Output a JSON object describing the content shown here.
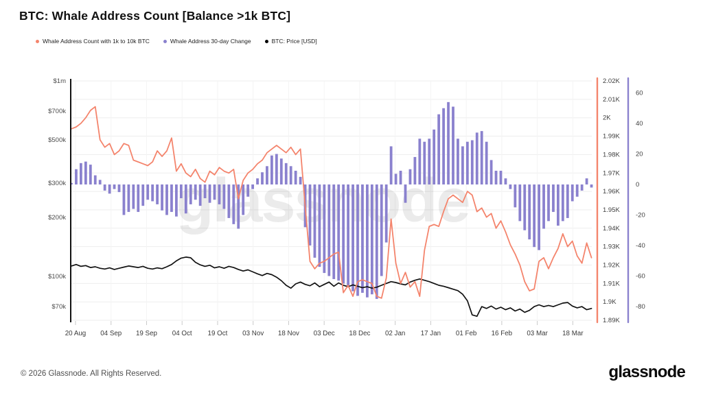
{
  "title": "BTC: Whale Address Count [Balance >1k BTC]",
  "legend": [
    {
      "label": "Whale Address Count with 1k to 10k BTC",
      "color": "#f4846c"
    },
    {
      "label": "Whale Address 30-day Change",
      "color": "#8a81ce"
    },
    {
      "label": "BTC: Price [USD]",
      "color": "#000000"
    }
  ],
  "watermark": "glassnode",
  "footer": {
    "copyright": "© 2026 Glassnode. All Rights Reserved.",
    "brand": "glassnode"
  },
  "chart_data": {
    "type": "mixed",
    "x_tick_labels": [
      "20 Aug",
      "04 Sep",
      "19 Sep",
      "04 Oct",
      "19 Oct",
      "03 Nov",
      "18 Nov",
      "03 Dec",
      "18 Dec",
      "02 Jan",
      "17 Jan",
      "01 Feb",
      "16 Feb",
      "03 Mar",
      "18 Mar"
    ],
    "x_start_label": "20 Aug",
    "point_interval_days": 2,
    "grid": "on",
    "legend_position": "top-left",
    "left_axis": {
      "name": "BTC: Price [USD]",
      "scale": "log",
      "tick_labels": [
        "$1m",
        "$700k",
        "$500k",
        "$300k",
        "$200k",
        "$100k",
        "$70k"
      ],
      "tick_values": [
        1000000,
        700000,
        500000,
        300000,
        200000,
        100000,
        70000
      ]
    },
    "right_axis_count": {
      "name": "Whale Address Count with 1k to 10k BTC",
      "min": 1890,
      "max": 2020,
      "tick_step": 10,
      "tick_labels": [
        "2.02K",
        "2.01K",
        "2K",
        "1.99K",
        "1.98K",
        "1.97K",
        "1.96K",
        "1.95K",
        "1.94K",
        "1.93K",
        "1.92K",
        "1.91K",
        "1.9K",
        "1.89K"
      ]
    },
    "right_axis_change": {
      "name": "Whale Address 30-day Change",
      "tick_values": [
        60,
        40,
        20,
        0,
        -20,
        -40,
        -60,
        -80
      ],
      "ylim": [
        -88,
        68
      ]
    },
    "series": [
      {
        "name": "Whale Address Count with 1k to 10k BTC",
        "type": "line",
        "axis": "right_count",
        "color": "#f4846c",
        "values": [
          1994,
          1995,
          1997,
          2000,
          2004,
          2006,
          1988,
          1984,
          1986,
          1980,
          1982,
          1986,
          1985,
          1977,
          1976,
          1975,
          1974,
          1976,
          1982,
          1979,
          1982,
          1989,
          1971,
          1975,
          1970,
          1968,
          1972,
          1967,
          1965,
          1971,
          1969,
          1973,
          1971,
          1970,
          1972,
          1956,
          1966,
          1970,
          1972,
          1975,
          1977,
          1981,
          1983,
          1985,
          1983,
          1981,
          1984,
          1980,
          1983,
          1952,
          1922,
          1918,
          1921,
          1922,
          1924,
          1926,
          1927,
          1905,
          1909,
          1903,
          1911,
          1912,
          1911,
          1910,
          1903,
          1902,
          1913,
          1945,
          1921,
          1910,
          1916,
          1908,
          1911,
          1903,
          1928,
          1941,
          1942,
          1941,
          1949,
          1956,
          1958,
          1956,
          1954,
          1960,
          1958,
          1949,
          1951,
          1946,
          1948,
          1940,
          1944,
          1938,
          1931,
          1926,
          1920,
          1911,
          1906,
          1907,
          1922,
          1924,
          1918,
          1924,
          1929,
          1937,
          1930,
          1933,
          1925,
          1921,
          1932,
          1924
        ]
      },
      {
        "name": "Whale Address 30-day Change",
        "type": "bar",
        "axis": "right_change",
        "color": "#8a81ce",
        "values": [
          1,
          10,
          14,
          15,
          13,
          6,
          3,
          -4,
          -6,
          -3,
          -5,
          -20,
          -18,
          -16,
          -18,
          -14,
          -10,
          -11,
          -13,
          -17,
          -20,
          -18,
          -21,
          -9,
          -19,
          -13,
          -10,
          -14,
          -9,
          -12,
          -10,
          -13,
          -16,
          -22,
          -26,
          -29,
          -20,
          -8,
          -3,
          4,
          8,
          12,
          19,
          20,
          17,
          14,
          12,
          9,
          5,
          -28,
          -40,
          -48,
          -54,
          -58,
          -60,
          -62,
          -63,
          -65,
          -67,
          -70,
          -73,
          -71,
          -74,
          -72,
          -75,
          -60,
          -38,
          25,
          7,
          9,
          -12,
          10,
          18,
          30,
          28,
          30,
          36,
          46,
          50,
          54,
          51,
          30,
          25,
          28,
          29,
          34,
          35,
          28,
          16,
          9,
          9,
          4,
          -3,
          -15,
          -24,
          -30,
          -36,
          -41,
          -43,
          -29,
          -24,
          -18,
          -27,
          -24,
          -22,
          -11,
          -8,
          -4,
          4,
          -2
        ]
      },
      {
        "name": "BTC: Price [USD]",
        "type": "line",
        "axis": "left_log_usd",
        "color": "#111111",
        "values": [
          113000,
          115000,
          112500,
          113500,
          111000,
          112000,
          110000,
          109000,
          110500,
          108500,
          110000,
          111500,
          113000,
          112000,
          111000,
          112500,
          110000,
          109000,
          110500,
          109500,
          112000,
          115000,
          120000,
          124000,
          125500,
          124500,
          118000,
          114500,
          112500,
          114000,
          110500,
          112000,
          110000,
          112500,
          111000,
          108500,
          106500,
          108000,
          105500,
          103000,
          101000,
          103500,
          102000,
          99000,
          95000,
          90000,
          87000,
          91500,
          93500,
          91000,
          89500,
          92500,
          88500,
          91000,
          93500,
          89000,
          92500,
          90000,
          88500,
          90500,
          89000,
          87500,
          88500,
          87000,
          88000,
          90000,
          92000,
          94000,
          93000,
          91500,
          90500,
          93500,
          95500,
          97000,
          95500,
          94000,
          92000,
          90000,
          89000,
          87500,
          86000,
          84500,
          81000,
          75000,
          63500,
          62500,
          70000,
          68500,
          70500,
          68000,
          69500,
          67500,
          69000,
          66500,
          68000,
          65500,
          67000,
          70000,
          71500,
          70000,
          71000,
          70000,
          71500,
          73000,
          73500,
          70500,
          69000,
          70000,
          67500,
          68500
        ]
      }
    ]
  }
}
